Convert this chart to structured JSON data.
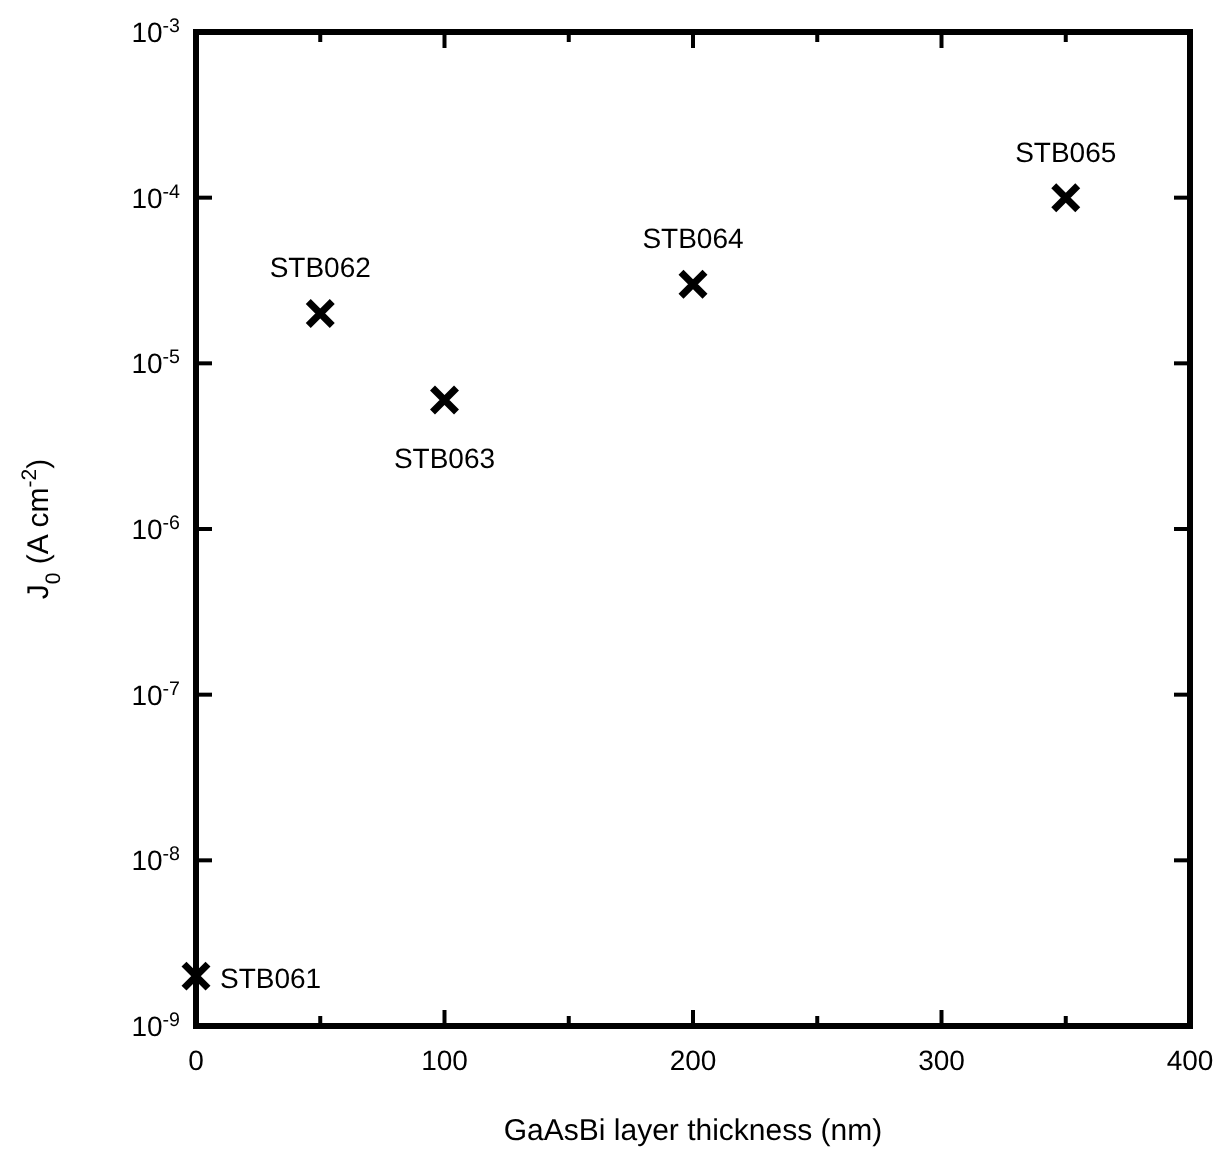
{
  "chart_data": {
    "type": "scatter",
    "xlabel": "GaAsBi layer thickness (nm)",
    "ylabel": "J$_{0}$ (A cm$^{-2}$)",
    "x": [
      0,
      50,
      100,
      200,
      350
    ],
    "series": [
      {
        "color": "#000000",
        "values": [
          2e-09,
          2e-05,
          6e-06,
          3e-05,
          0.0001
        ]
      }
    ],
    "marker": "cross",
    "log": "y",
    "grid": false,
    "xlim": [
      0,
      400
    ],
    "ylim": [
      1e-09,
      0.001
    ],
    "xticks": [
      0,
      {
        "value": 50,
        "label": null
      },
      100,
      {
        "value": 150,
        "label": null
      },
      200,
      {
        "value": 250,
        "label": null
      },
      300,
      {
        "value": 350,
        "label": null
      },
      400
    ],
    "yticks": [
      {
        "value": 1e-09,
        "label": "10$^{-9}$"
      },
      {
        "value": 1e-08,
        "label": "10$^{-8}$"
      },
      {
        "value": 1e-07,
        "label": "10$^{-7}$"
      },
      {
        "value": 1e-06,
        "label": "10$^{-6}$"
      },
      {
        "value": 1e-05,
        "label": "10$^{-5}$"
      },
      {
        "value": 0.0001,
        "label": "10$^{-4}$"
      },
      {
        "value": 0.001,
        "label": "10$^{-3}$"
      }
    ],
    "annotations": [
      {
        "text": "STB061",
        "x": 0,
        "y": 2e-09
      },
      {
        "text": "STB062",
        "x": 50,
        "y": 2e-05
      },
      {
        "text": "STB063",
        "x": 100,
        "y": 6e-06
      },
      {
        "text": "STB064",
        "x": 200,
        "y": 3e-05
      },
      {
        "text": "STB065",
        "x": 350,
        "y": 0.0001
      }
    ]
  }
}
